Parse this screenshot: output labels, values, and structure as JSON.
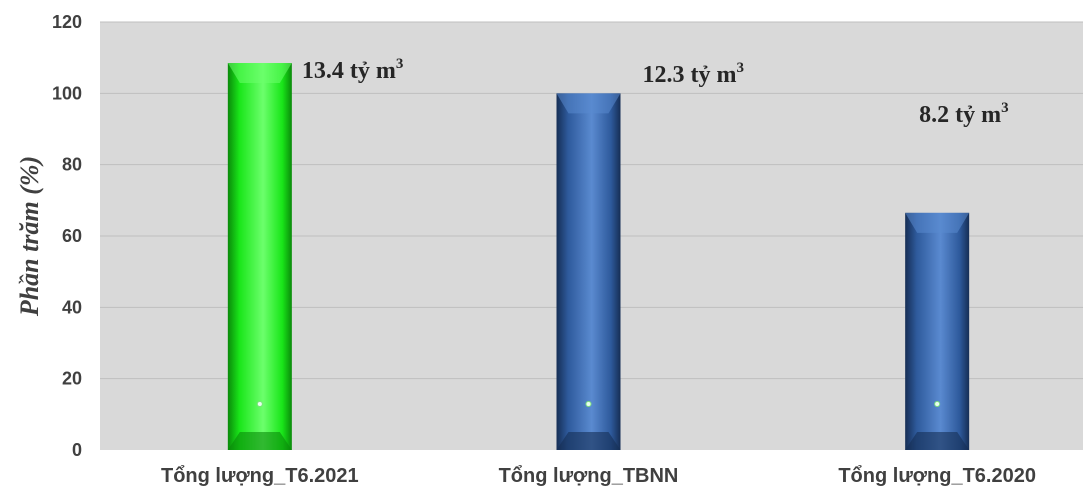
{
  "chart_data": {
    "type": "bar",
    "categories": [
      "Tổng lượng_T6.2021",
      "Tổng lượng_TBNN",
      "Tổng lượng_T6.2020"
    ],
    "values": [
      108.5,
      100,
      66.5
    ],
    "data_labels": [
      {
        "text": "13.4 tỷ m",
        "sup": "3"
      },
      {
        "text": "12.3 tỷ m",
        "sup": "3"
      },
      {
        "text": "8.2 tỷ m",
        "sup": "3"
      }
    ],
    "title": "",
    "xlabel": "",
    "ylabel": "Phần trăm (%)",
    "ylim": [
      0,
      120
    ],
    "yticks": [
      0,
      20,
      40,
      60,
      80,
      100,
      120
    ],
    "grid": true,
    "legend": false,
    "colors": {
      "plot_background": "#d9d9d9",
      "gridline": "#bfbfbf",
      "bars": [
        "#19e619",
        "#2e5a9c",
        "#2e5a9c"
      ],
      "bar_light": [
        "#6cff6c",
        "#5a8ad0",
        "#5a8ad0"
      ],
      "bar_dark": [
        "#0a8a0a",
        "#162e55",
        "#162e55"
      ]
    }
  }
}
